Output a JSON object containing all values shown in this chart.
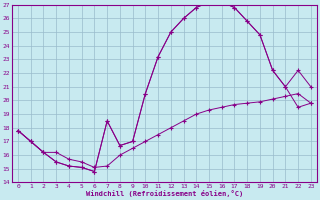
{
  "xlabel": "Windchill (Refroidissement éolien,°C)",
  "xlim": [
    -0.5,
    23.5
  ],
  "ylim": [
    14,
    27
  ],
  "xticks": [
    0,
    1,
    2,
    3,
    4,
    5,
    6,
    7,
    8,
    9,
    10,
    11,
    12,
    13,
    14,
    15,
    16,
    17,
    18,
    19,
    20,
    21,
    22,
    23
  ],
  "yticks": [
    14,
    15,
    16,
    17,
    18,
    19,
    20,
    21,
    22,
    23,
    24,
    25,
    26,
    27
  ],
  "bg_color": "#c8eaf0",
  "line_color": "#880088",
  "grid_color": "#99bbcc",
  "line1_x": [
    0,
    1,
    2,
    3,
    4,
    5,
    6,
    7,
    8,
    9,
    10,
    11,
    12,
    13,
    14,
    15,
    16,
    17,
    18,
    19,
    20,
    21,
    22,
    23
  ],
  "line1_y": [
    17.8,
    17.0,
    16.2,
    15.5,
    15.2,
    15.1,
    14.8,
    18.5,
    16.7,
    17.0,
    20.5,
    23.2,
    25.0,
    26.0,
    26.8,
    27.2,
    27.2,
    26.8,
    25.8,
    24.8,
    22.2,
    21.0,
    19.5,
    19.8
  ],
  "line2_x": [
    0,
    1,
    2,
    3,
    4,
    5,
    6,
    7,
    8,
    9,
    10,
    11,
    12,
    13,
    14,
    15,
    16,
    17,
    18,
    19,
    20,
    21,
    22,
    23
  ],
  "line2_y": [
    17.8,
    17.0,
    16.2,
    15.5,
    15.2,
    15.1,
    14.8,
    18.5,
    16.7,
    17.0,
    20.5,
    23.2,
    25.0,
    26.0,
    26.8,
    27.2,
    27.2,
    26.8,
    25.8,
    24.8,
    22.2,
    21.0,
    22.2,
    21.0
  ],
  "line3_x": [
    0,
    1,
    2,
    3,
    4,
    5,
    6,
    7,
    8,
    9,
    10,
    11,
    12,
    13,
    14,
    15,
    16,
    17,
    18,
    19,
    20,
    21,
    22,
    23
  ],
  "line3_y": [
    17.8,
    17.0,
    16.2,
    16.2,
    15.7,
    15.5,
    15.1,
    15.2,
    16.0,
    16.5,
    17.0,
    17.5,
    18.0,
    18.5,
    19.0,
    19.3,
    19.5,
    19.7,
    19.8,
    19.9,
    20.1,
    20.3,
    20.5,
    19.8
  ]
}
